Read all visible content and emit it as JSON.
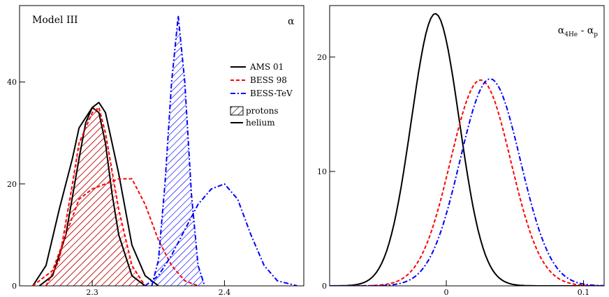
{
  "chart_data": [
    {
      "type": "line",
      "title": "Model III",
      "ylabel": "α",
      "xlim": [
        2.245,
        2.46
      ],
      "ylim": [
        0,
        55
      ],
      "xticks": [
        {
          "v": 2.3,
          "label": "2.3"
        },
        {
          "v": 2.4,
          "label": "2.4"
        }
      ],
      "yticks": [
        {
          "v": 0,
          "label": "0"
        },
        {
          "v": 20,
          "label": "20"
        },
        {
          "v": 40,
          "label": "40"
        }
      ],
      "grid": false,
      "legend_position": "top-right",
      "legend": {
        "series": [
          {
            "name": "AMS 01",
            "color": "#000000",
            "dash": "solid"
          },
          {
            "name": "BESS 98",
            "color": "#ff0000",
            "dash": "dashed"
          },
          {
            "name": "BESS-TeV",
            "color": "#0000ff",
            "dash": "dashdot"
          }
        ],
        "types": [
          {
            "name": "protons",
            "style": "hatched"
          },
          {
            "name": "helium",
            "style": "line"
          }
        ]
      },
      "series": [
        {
          "name": "AMS 01",
          "particle": "protons",
          "color": "#000000",
          "dash": "solid",
          "hatched": true,
          "x": [
            2.26,
            2.27,
            2.28,
            2.29,
            2.295,
            2.3,
            2.305,
            2.31,
            2.315,
            2.32,
            2.33,
            2.34
          ],
          "y": [
            0,
            2,
            10,
            25,
            32,
            35,
            34,
            28,
            18,
            10,
            2,
            0
          ]
        },
        {
          "name": "AMS 01",
          "particle": "helium",
          "color": "#000000",
          "dash": "solid",
          "hatched": false,
          "x": [
            2.255,
            2.265,
            2.275,
            2.285,
            2.29,
            2.3,
            2.305,
            2.31,
            2.32,
            2.33,
            2.34,
            2.35
          ],
          "y": [
            0,
            4,
            15,
            25,
            31,
            35,
            36,
            34,
            22,
            8,
            2,
            0
          ]
        },
        {
          "name": "BESS 98",
          "particle": "protons",
          "color": "#ff0000",
          "dash": "dashed",
          "hatched": true,
          "x": [
            2.265,
            2.275,
            2.285,
            2.29,
            2.3,
            2.305,
            2.31,
            2.32,
            2.33,
            2.34
          ],
          "y": [
            0,
            5,
            20,
            28,
            34,
            35,
            30,
            15,
            4,
            0
          ]
        },
        {
          "name": "BESS 98",
          "particle": "helium",
          "color": "#ff0000",
          "dash": "dashed",
          "hatched": false,
          "x": [
            2.255,
            2.27,
            2.28,
            2.29,
            2.3,
            2.31,
            2.32,
            2.33,
            2.34,
            2.35,
            2.36,
            2.37,
            2.38
          ],
          "y": [
            0,
            3,
            10,
            17,
            19,
            20,
            21,
            21,
            16,
            9,
            4,
            1,
            0
          ]
        },
        {
          "name": "BESS-TeV",
          "particle": "protons",
          "color": "#0000ff",
          "dash": "dashdot",
          "hatched": true,
          "x": [
            2.345,
            2.35,
            2.355,
            2.36,
            2.365,
            2.37,
            2.375,
            2.38,
            2.385
          ],
          "y": [
            0,
            5,
            20,
            40,
            53,
            40,
            18,
            4,
            0
          ]
        },
        {
          "name": "BESS-TeV",
          "particle": "helium",
          "color": "#0000ff",
          "dash": "dashdot",
          "hatched": false,
          "x": [
            2.34,
            2.35,
            2.36,
            2.37,
            2.38,
            2.39,
            2.4,
            2.41,
            2.42,
            2.43,
            2.44,
            2.455
          ],
          "y": [
            0,
            2,
            6,
            11,
            16,
            19,
            20,
            17,
            10,
            4,
            1,
            0
          ]
        }
      ]
    },
    {
      "type": "line",
      "title": "",
      "ylabel": "α4He - αp",
      "xlim": [
        -0.085,
        0.115
      ],
      "ylim": [
        0,
        24.5
      ],
      "xticks": [
        {
          "v": 0,
          "label": "0"
        },
        {
          "v": 0.1,
          "label": "0.1"
        }
      ],
      "yticks": [
        {
          "v": 0,
          "label": "0"
        },
        {
          "v": 10,
          "label": "10"
        },
        {
          "v": 20,
          "label": "20"
        }
      ],
      "grid": false,
      "series": [
        {
          "name": "AMS 01",
          "color": "#000000",
          "dash": "solid",
          "mean": -0.008,
          "sigma": 0.0175,
          "peak": 23.8
        },
        {
          "name": "BESS 98",
          "color": "#ff0000",
          "dash": "dashed",
          "mean": 0.025,
          "sigma": 0.022,
          "peak": 18.0
        },
        {
          "name": "BESS-TeV",
          "color": "#0000ff",
          "dash": "dashdot",
          "mean": 0.032,
          "sigma": 0.022,
          "peak": 18.1
        }
      ]
    }
  ]
}
